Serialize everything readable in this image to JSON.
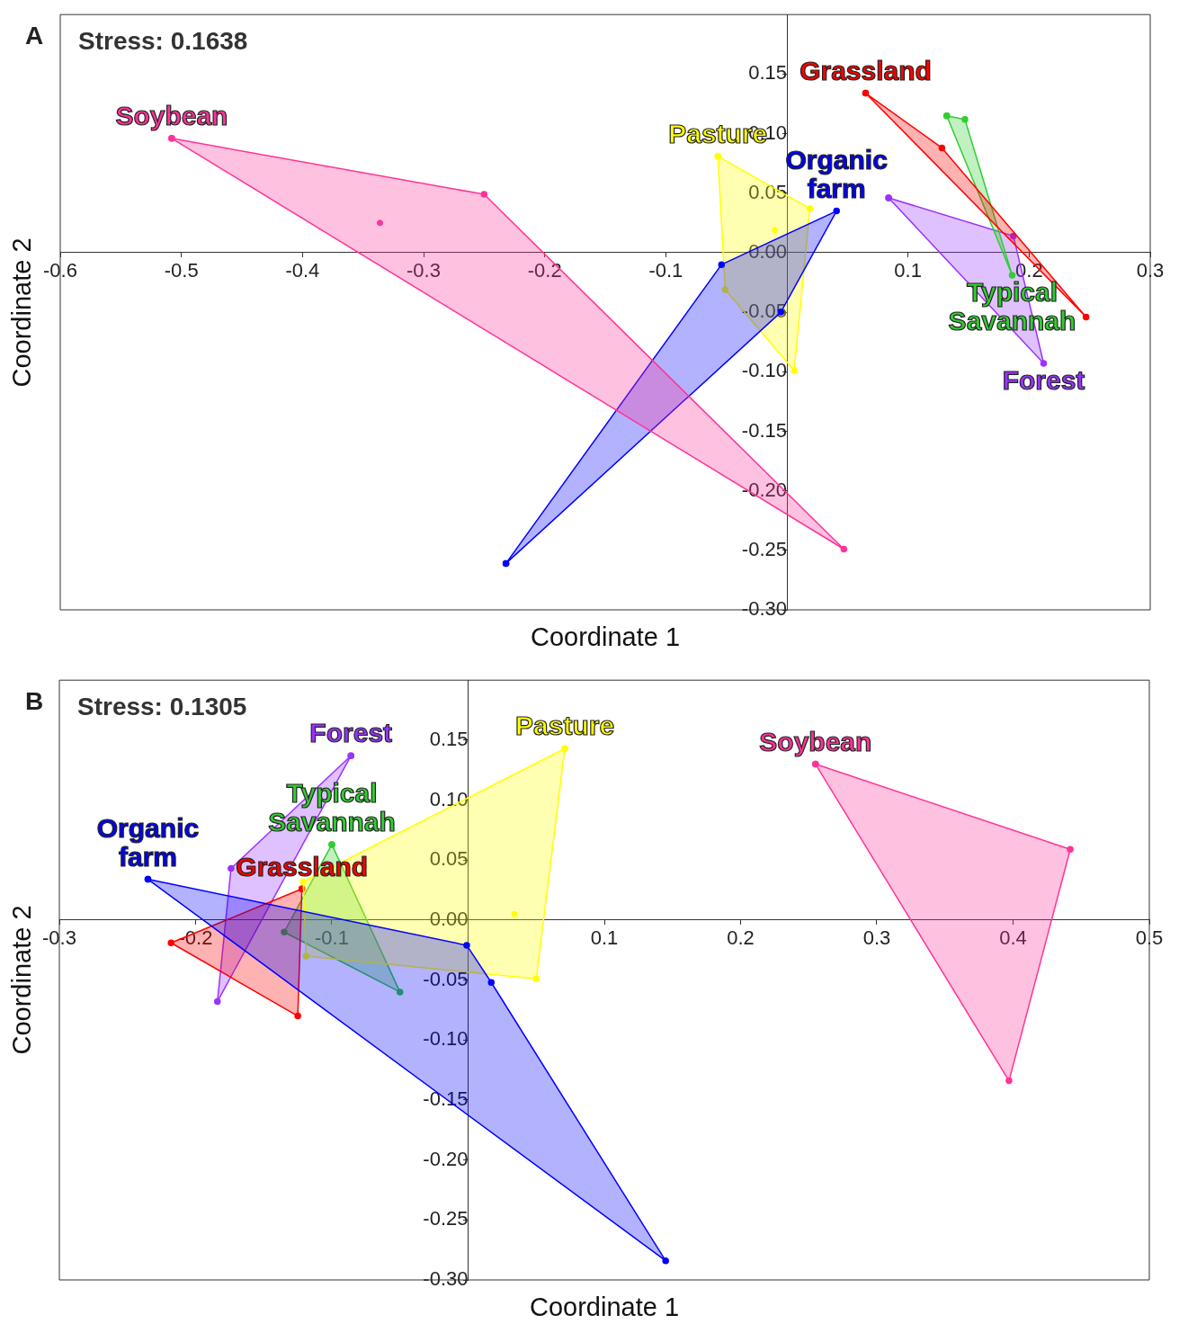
{
  "chart_data": [
    {
      "type": "scatter",
      "title": "A",
      "xlabel": "Coordinate 1",
      "ylabel": "Coordinate 2",
      "annotations": [
        "Stress: 0.1638"
      ],
      "xlim": [
        -0.6,
        0.3
      ],
      "ylim": [
        -0.3,
        0.2
      ],
      "xticks": [
        -0.6,
        -0.5,
        -0.4,
        -0.3,
        -0.2,
        -0.1,
        0.1,
        0.2,
        0.3
      ],
      "yticks": [
        {
          "value": -0.3,
          "label": "-0.30"
        },
        -0.25,
        {
          "value": -0.2,
          "label": "-0.20"
        },
        -0.15,
        {
          "value": -0.1,
          "label": "-0.10"
        },
        -0.05,
        {
          "value": 0,
          "label": "0.00"
        },
        0.05,
        {
          "value": 0.1,
          "label": "0.10"
        },
        0.15
      ],
      "grid": false,
      "legend": false,
      "marker": "circle",
      "series": [
        {
          "name": "Soybean",
          "type": "area",
          "color": "#ff3399",
          "x": [
            -0.508,
            -0.25,
            0.047
          ],
          "values": [
            0.096,
            0.049,
            -0.249
          ]
        },
        {
          "type": "scatter",
          "color": "#ff3399",
          "x": [
            -0.336
          ],
          "values": [
            0.025
          ]
        },
        {
          "name": "Organic farm",
          "type": "area",
          "color": "#0000ff",
          "x": [
            -0.232,
            -0.054,
            0.041,
            -0.005
          ],
          "values": [
            -0.261,
            -0.01,
            0.035,
            -0.05
          ]
        },
        {
          "name": "Pasture",
          "type": "area",
          "color": "#ffff00",
          "x": [
            -0.057,
            0.019,
            0.006,
            -0.051
          ],
          "values": [
            0.081,
            0.037,
            -0.099,
            -0.031
          ]
        },
        {
          "type": "scatter",
          "color": "#ffff00",
          "x": [
            -0.01
          ],
          "values": [
            0.019
          ]
        },
        {
          "name": "Grassland",
          "type": "area",
          "color": "#ff0000",
          "x": [
            0.065,
            0.128,
            0.247
          ],
          "values": [
            0.134,
            0.088,
            -0.054
          ]
        },
        {
          "name": "Typical Savannah",
          "type": "area",
          "color": "#33cc33",
          "x": [
            0.132,
            0.147,
            0.186
          ],
          "values": [
            0.115,
            0.112,
            -0.019
          ]
        },
        {
          "name": "Forest",
          "type": "area",
          "color": "#9933ff",
          "x": [
            0.084,
            0.187,
            0.212
          ],
          "values": [
            0.046,
            0.014,
            -0.093
          ]
        }
      ]
    },
    {
      "type": "scatter",
      "title": "B",
      "xlabel": "Coordinate 1",
      "ylabel": "Coordinate 2",
      "annotations": [
        "Stress: 0.1305"
      ],
      "xlim": [
        -0.3,
        0.5
      ],
      "ylim": [
        -0.3,
        0.2
      ],
      "xticks": [
        -0.3,
        -0.2,
        -0.1,
        0.1,
        0.2,
        0.3,
        0.4,
        0.5
      ],
      "yticks": [
        {
          "value": -0.3,
          "label": "-0.30"
        },
        -0.25,
        {
          "value": -0.2,
          "label": "-0.20"
        },
        -0.15,
        {
          "value": -0.1,
          "label": "-0.10"
        },
        -0.05,
        {
          "value": 0,
          "label": "0.00"
        },
        0.05,
        {
          "value": 0.1,
          "label": "0.10"
        },
        0.15
      ],
      "grid": false,
      "legend": false,
      "marker": "circle",
      "series": [
        {
          "name": "Soybean",
          "type": "area",
          "color": "#ff3399",
          "x": [
            0.255,
            0.442,
            0.397
          ],
          "values": [
            0.13,
            0.059,
            -0.134
          ]
        },
        {
          "name": "Organic farm",
          "type": "area",
          "color": "#0000ff",
          "x": [
            -0.235,
            -0.001,
            0.017,
            0.145
          ],
          "values": [
            0.034,
            -0.021,
            -0.052,
            -0.284
          ]
        },
        {
          "name": "Pasture",
          "type": "area",
          "color": "#ffff00",
          "x": [
            0.071,
            0.05,
            -0.119,
            -0.121
          ],
          "values": [
            0.143,
            -0.049,
            -0.03,
            0.032
          ]
        },
        {
          "type": "scatter",
          "color": "#ffff00",
          "x": [
            0.034
          ],
          "values": [
            0.005
          ]
        },
        {
          "name": "Grassland",
          "type": "area",
          "color": "#ff0000",
          "x": [
            -0.122,
            -0.218,
            -0.125
          ],
          "values": [
            0.026,
            -0.019,
            -0.08
          ]
        },
        {
          "name": "Typical Savannah",
          "type": "area",
          "color": "#33cc33",
          "x": [
            -0.1,
            -0.135,
            -0.05
          ],
          "values": [
            0.063,
            -0.01,
            -0.06
          ]
        },
        {
          "name": "Forest",
          "type": "area",
          "color": "#9933ff",
          "x": [
            -0.086,
            -0.174,
            -0.184
          ],
          "values": [
            0.137,
            0.043,
            -0.068
          ]
        }
      ]
    }
  ]
}
